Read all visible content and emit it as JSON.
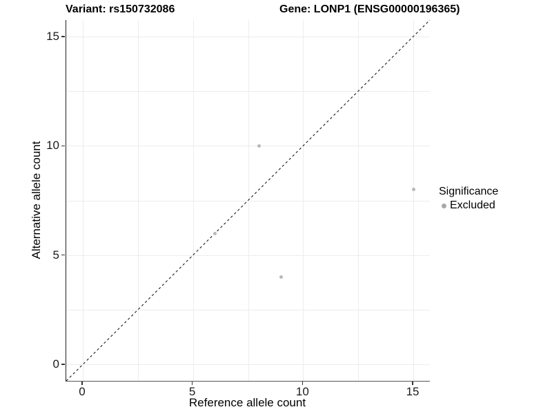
{
  "chart_data": {
    "type": "scatter",
    "titles": {
      "left": "Variant: rs150732086",
      "right": "Gene: LONP1 (ENSG00000196365)"
    },
    "xlabel": "Reference allele count",
    "ylabel": "Alternative allele count",
    "xlim": [
      -0.75,
      15.75
    ],
    "ylim": [
      -0.75,
      15.75
    ],
    "xticks": [
      "0",
      "5",
      "10",
      "15"
    ],
    "yticks": [
      "0",
      "5",
      "10",
      "15"
    ],
    "xtick_values": [
      0,
      5,
      10,
      15
    ],
    "ytick_values": [
      0,
      5,
      10,
      15
    ],
    "grid_x": [
      0,
      2.5,
      5,
      7.5,
      10,
      12.5,
      15
    ],
    "grid_y": [
      0,
      2.5,
      5,
      7.5,
      10,
      12.5,
      15
    ],
    "series": [
      {
        "name": "Excluded",
        "color": "#b9b9b9",
        "points": [
          [
            6,
            6
          ],
          [
            8,
            10
          ],
          [
            9,
            4
          ],
          [
            15,
            8
          ]
        ]
      }
    ],
    "abline": {
      "slope": 1,
      "intercept": 0,
      "style": "dashed",
      "color": "#1a1a1a"
    },
    "legend": {
      "title": "Significance",
      "position": "right",
      "items": [
        {
          "label": "Excluded",
          "color": "#a8a8a8"
        }
      ]
    },
    "colors": {
      "background": "#ffffff",
      "gridline": "#ececec",
      "axis_line": "#333333",
      "point": "#b9b9b9",
      "text": "#000000"
    }
  }
}
